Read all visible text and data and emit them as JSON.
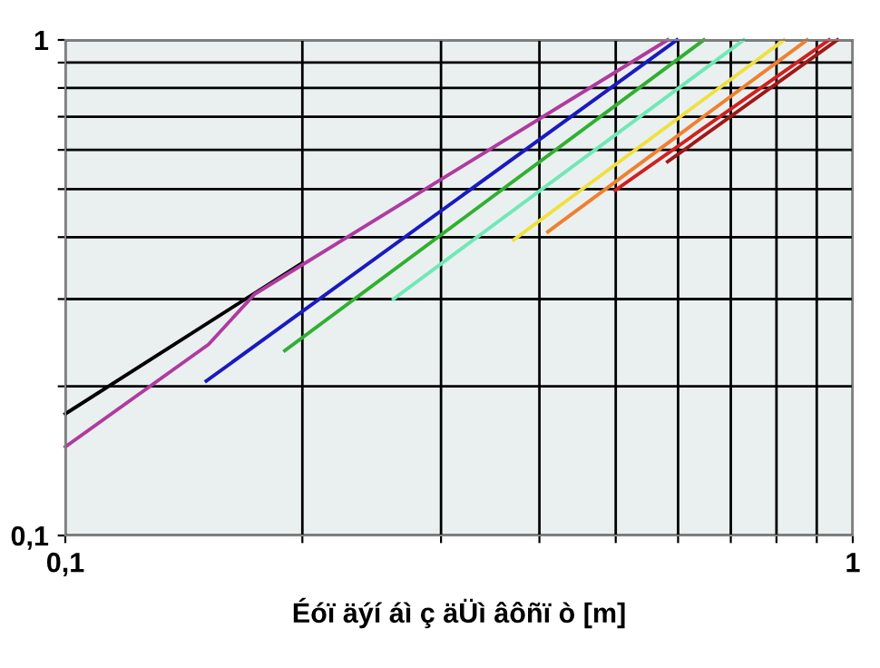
{
  "chart_data": {
    "type": "line",
    "xlabel": "Éóï äýí áì ç äÜì âôñï ò [m]",
    "log": "xy",
    "grid": true,
    "xlim": [
      0.1,
      1
    ],
    "ylim": [
      0.1,
      1
    ],
    "xticks": [
      {
        "value": 0.1,
        "label": "0,1"
      },
      {
        "value": 0.2,
        "label": null
      },
      {
        "value": 0.3,
        "label": null
      },
      {
        "value": 0.4,
        "label": null
      },
      {
        "value": 0.5,
        "label": null
      },
      {
        "value": 0.6,
        "label": null
      },
      {
        "value": 0.7,
        "label": null
      },
      {
        "value": 0.8,
        "label": null
      },
      {
        "value": 0.9,
        "label": null
      },
      {
        "value": 1,
        "label": "1"
      }
    ],
    "yticks": [
      {
        "value": 0.1,
        "label": "0,1"
      },
      {
        "value": 0.2,
        "label": null
      },
      {
        "value": 0.3,
        "label": null
      },
      {
        "value": 0.4,
        "label": null
      },
      {
        "value": 0.5,
        "label": null
      },
      {
        "value": 0.6,
        "label": null
      },
      {
        "value": 0.7,
        "label": null
      },
      {
        "value": 0.8,
        "label": null
      },
      {
        "value": 0.9,
        "label": null
      },
      {
        "value": 1,
        "label": "1"
      }
    ],
    "series": [
      {
        "color": "#000000",
        "x": [
          0.1,
          0.2
        ],
        "values": [
          0.176,
          0.355
        ]
      },
      {
        "color": "#b03aa0",
        "x": [
          0.1,
          0.152,
          0.174,
          0.582
        ],
        "values": [
          0.151,
          0.243,
          0.307,
          1.0
        ]
      },
      {
        "color": "#1a1ac0",
        "x": [
          0.151,
          0.598
        ],
        "values": [
          0.205,
          1.0
        ]
      },
      {
        "color": "#30b030",
        "x": [
          0.19,
          0.647
        ],
        "values": [
          0.236,
          1.0
        ]
      },
      {
        "color": "#70e8b8",
        "x": [
          0.261,
          0.727
        ],
        "values": [
          0.3,
          1.0
        ]
      },
      {
        "color": "#f0e040",
        "x": [
          0.371,
          0.818
        ],
        "values": [
          0.395,
          1.0
        ]
      },
      {
        "color": "#f08030",
        "x": [
          0.41,
          0.875
        ],
        "values": [
          0.41,
          1.0
        ]
      },
      {
        "color": "#d02020",
        "x": [
          0.499,
          0.933
        ],
        "values": [
          0.497,
          1.0
        ]
      },
      {
        "color": "#a01818",
        "x": [
          0.582,
          0.956
        ],
        "values": [
          0.568,
          1.0
        ]
      }
    ]
  }
}
